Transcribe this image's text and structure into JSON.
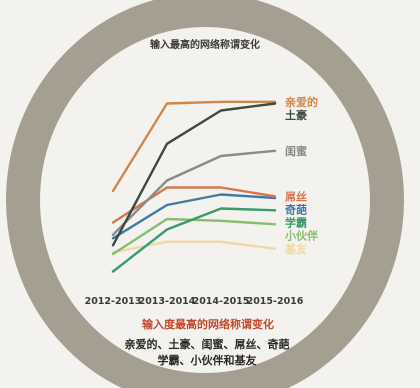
{
  "chart_data": {
    "type": "line",
    "title": "输入最高的网络称谓变化",
    "x": [
      "2012-2013",
      "2013-2014",
      "2014-2015",
      "2015-2016"
    ],
    "ylim": [
      0,
      100
    ],
    "grid": false,
    "legend": "right-end-labels",
    "series": [
      {
        "name": "土豪",
        "color": "#3c4a44",
        "values": [
          17,
          75,
          94,
          98
        ]
      },
      {
        "name": "亲爱的",
        "color": "#d2874a",
        "values": [
          48,
          98,
          99,
          99
        ]
      },
      {
        "name": "闺蜜",
        "color": "#8a8a88",
        "values": [
          23,
          54,
          68,
          71
        ]
      },
      {
        "name": "屌丝",
        "color": "#d7774e",
        "values": [
          30,
          50,
          50,
          45
        ]
      },
      {
        "name": "奇葩",
        "color": "#3f7ba6",
        "values": [
          21,
          40,
          46,
          44
        ]
      },
      {
        "name": "学霸",
        "color": "#3c9a6c",
        "values": [
          2,
          26,
          38,
          37
        ]
      },
      {
        "name": "小伙伴",
        "color": "#86be6f",
        "values": [
          12,
          32,
          31,
          29
        ]
      },
      {
        "name": "基友",
        "color": "#f0d9a3",
        "values": [
          13,
          19,
          19,
          15
        ]
      }
    ]
  },
  "caption": {
    "subtitle": "输入度最高的网络称谓变化",
    "line1": "亲爱的、土豪、闺蜜、屌丝、奇葩",
    "line2": "学霸、小伙伴和基友"
  },
  "colors": {
    "ring": "#a59f91",
    "subtitle": "#c24a2c",
    "text": "#2b2925"
  }
}
